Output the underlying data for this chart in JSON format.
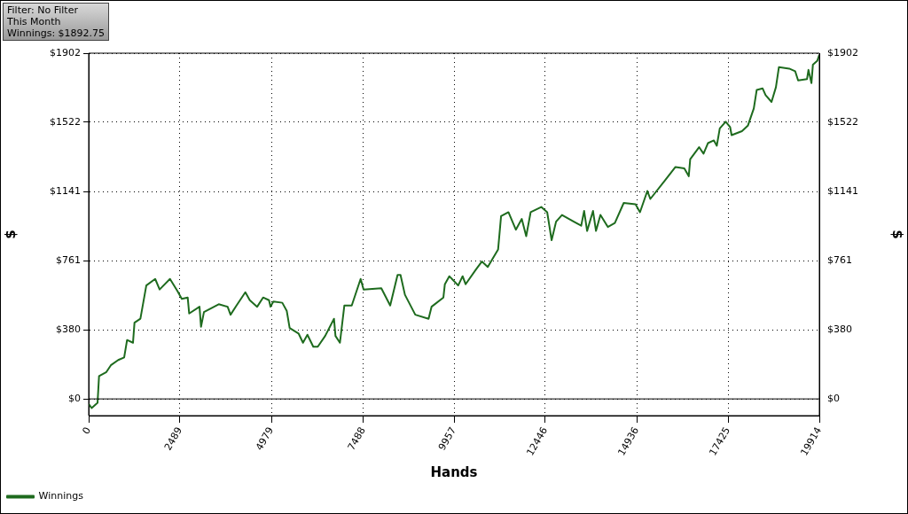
{
  "chart_data": {
    "type": "line",
    "xlabel": "Hands",
    "ylabel": "$",
    "y2label": "$",
    "annotations": [
      "Filter: No Filter",
      "This Month",
      "Winnings: $1892.75"
    ],
    "xlim": [
      0,
      19914
    ],
    "xticks": [
      0,
      2489,
      4979,
      7488,
      9957,
      12446,
      14936,
      17425,
      19914
    ],
    "ylim": [
      -92,
      1902
    ],
    "yticks": [
      {
        "value": 0,
        "label": "$0"
      },
      {
        "value": 380,
        "label": "$380"
      },
      {
        "value": 761,
        "label": "$761"
      },
      {
        "value": 1141,
        "label": "$1141"
      },
      {
        "value": 1522,
        "label": "$1522"
      },
      {
        "value": 1902,
        "label": "$1902"
      }
    ],
    "y2lim": [
      -92,
      1902
    ],
    "y2ticks": [
      {
        "value": 0,
        "label": "$0"
      },
      {
        "value": 380,
        "label": "$380"
      },
      {
        "value": 761,
        "label": "$761"
      },
      {
        "value": 1141,
        "label": "$1141"
      },
      {
        "value": 1522,
        "label": "$1522"
      },
      {
        "value": 1902,
        "label": "$1902"
      }
    ],
    "grid": true,
    "legend": "bottom left",
    "marker": "none",
    "line_style": "solid",
    "series": [
      {
        "name": "Winnings",
        "color": "#1e6b1e",
        "x": [
          0,
          80,
          242,
          283,
          483,
          604,
          805,
          967,
          1047,
          1208,
          1249,
          1410,
          1571,
          1813,
          1934,
          2216,
          2417,
          2538,
          2699,
          2739,
          3021,
          3062,
          3142,
          3545,
          3787,
          3867,
          4029,
          4270,
          4391,
          4592,
          4754,
          4915,
          4955,
          5035,
          5277,
          5398,
          5478,
          5720,
          5841,
          5962,
          6122,
          6244,
          6445,
          6686,
          6727,
          6848,
          6969,
          7170,
          7412,
          7493,
          7976,
          8218,
          8419,
          8499,
          8620,
          8902,
          9264,
          9345,
          9668,
          9708,
          9829,
          10071,
          10192,
          10273,
          10555,
          10716,
          10877,
          11159,
          11240,
          11441,
          11643,
          11804,
          11925,
          12046,
          12336,
          12497,
          12618,
          12739,
          12900,
          13223,
          13424,
          13504,
          13585,
          13746,
          13827,
          13948,
          14150,
          14341,
          14583,
          14905,
          15026,
          15227,
          15308,
          15711,
          15993,
          16234,
          16355,
          16395,
          16637,
          16758,
          16878,
          17040,
          17120,
          17201,
          17362,
          17483,
          17523,
          17805,
          17966,
          18128,
          18208,
          18369,
          18450,
          18611,
          18731,
          18812,
          19094,
          19255,
          19336,
          19578,
          19618,
          19699,
          19739,
          19860,
          19914
        ],
        "values": [
          -28,
          -50,
          -21,
          126,
          148,
          185,
          214,
          228,
          324,
          309,
          419,
          441,
          624,
          660,
          602,
          660,
          594,
          550,
          558,
          470,
          507,
          397,
          478,
          521,
          507,
          463,
          514,
          587,
          543,
          507,
          558,
          543,
          507,
          536,
          529,
          485,
          390,
          360,
          309,
          353,
          287,
          287,
          346,
          441,
          346,
          309,
          514,
          514,
          660,
          602,
          609,
          514,
          682,
          682,
          573,
          463,
          441,
          507,
          558,
          631,
          675,
          624,
          675,
          631,
          712,
          756,
          726,
          822,
          1005,
          1027,
          931,
          990,
          895,
          1027,
          1056,
          1027,
          873,
          975,
          1012,
          975,
          953,
          1034,
          924,
          1034,
          924,
          1012,
          946,
          968,
          1078,
          1071,
          1027,
          1144,
          1100,
          1203,
          1276,
          1268,
          1225,
          1319,
          1385,
          1349,
          1407,
          1422,
          1393,
          1488,
          1525,
          1495,
          1451,
          1473,
          1503,
          1598,
          1700,
          1708,
          1671,
          1634,
          1715,
          1825,
          1817,
          1803,
          1752,
          1759,
          1810,
          1737,
          1839,
          1861,
          1893
        ]
      }
    ]
  }
}
